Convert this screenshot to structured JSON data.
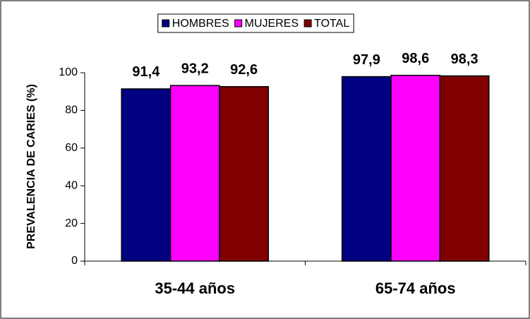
{
  "chart_data": {
    "type": "bar",
    "categories": [
      "35-44 años",
      "65-74 años"
    ],
    "y_label": "PREVALENCIA DE CARIES (%)",
    "series": [
      {
        "name": "HOMBRES",
        "color": "#000080",
        "values": [
          91.4,
          97.9
        ],
        "value_labels": [
          "91,4",
          "97,9"
        ]
      },
      {
        "name": "MUJERES",
        "color": "#ff00ff",
        "values": [
          93.2,
          98.6
        ],
        "value_labels": [
          "93,2",
          "98,6"
        ]
      },
      {
        "name": "TOTAL",
        "color": "#800000",
        "values": [
          92.6,
          98.3
        ],
        "value_labels": [
          "92,6",
          "98,3"
        ]
      }
    ],
    "ylim": [
      0,
      100
    ],
    "yticks": [
      0,
      20,
      40,
      60,
      80,
      100
    ],
    "legend": "top"
  }
}
